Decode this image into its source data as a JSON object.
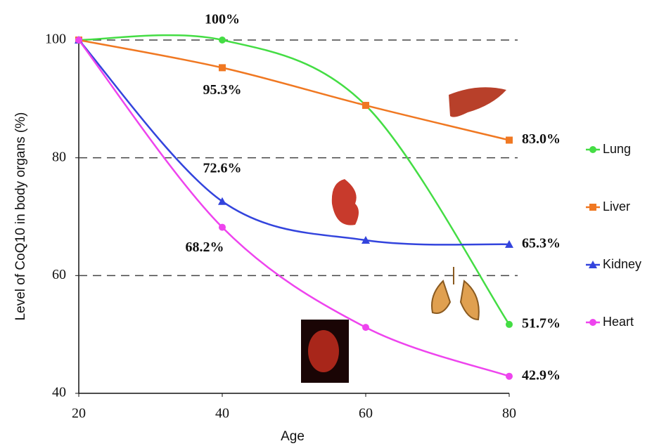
{
  "chart_data": {
    "type": "line",
    "x_label": "Age",
    "y_label": "Level of CoQ10 in body organs (%)",
    "x": [
      20,
      40,
      60,
      80
    ],
    "xlim": [
      20,
      80
    ],
    "xticks": [
      20,
      40,
      60,
      80
    ],
    "ylim": [
      40,
      100
    ],
    "yticks": [
      40,
      60,
      80,
      100
    ],
    "grid": true,
    "grid_style": "dashed",
    "legend": "right",
    "series": [
      {
        "name": "Lung",
        "color": "#44dd44",
        "marker": "circle",
        "values": [
          100,
          100,
          88.9,
          51.7
        ],
        "value_labels": [
          null,
          "100%",
          null,
          "51.7%"
        ]
      },
      {
        "name": "Liver",
        "color": "#f07822",
        "marker": "square",
        "values": [
          100,
          95.3,
          88.9,
          83.0
        ],
        "value_labels": [
          null,
          "95.3%",
          null,
          "83.0%"
        ]
      },
      {
        "name": "Kidney",
        "color": "#3344dd",
        "marker": "triangle",
        "values": [
          100,
          72.6,
          66.0,
          65.3
        ],
        "value_labels": [
          null,
          "72.6%",
          null,
          "65.3%"
        ]
      },
      {
        "name": "Heart",
        "color": "#ee44ee",
        "marker": "circle",
        "values": [
          100,
          68.2,
          51.2,
          42.9
        ],
        "value_labels": [
          null,
          "68.2%",
          null,
          "42.9%"
        ]
      }
    ]
  }
}
